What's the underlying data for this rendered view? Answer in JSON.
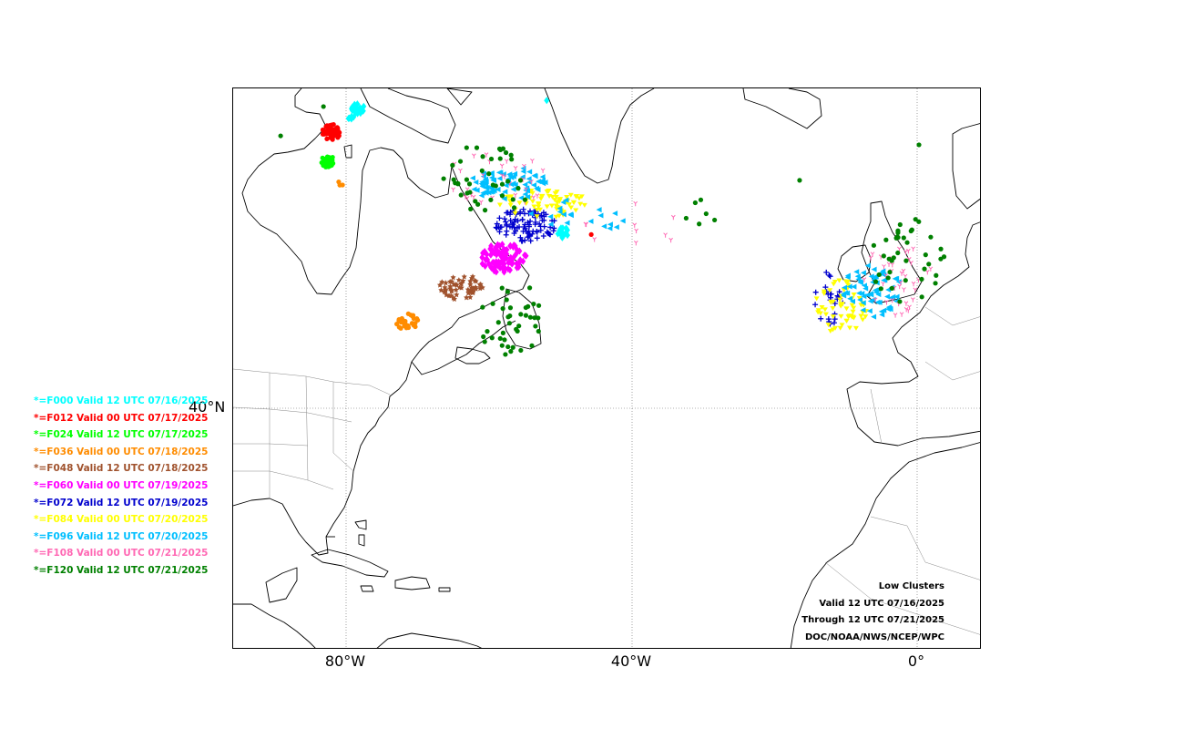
{
  "map": {
    "lon_range": [
      -98,
      11.5
    ],
    "lat_range": [
      22,
      84
    ],
    "projection": "polar-stereographic",
    "gridlines": {
      "lon_labels": [
        {
          "lon": -80,
          "text": "80°W"
        },
        {
          "lon": -40,
          "text": "40°W"
        },
        {
          "lon": 0,
          "text": "0°"
        }
      ],
      "lat_labels": [
        {
          "lat": 40,
          "text": "40°N"
        }
      ]
    }
  },
  "legend": [
    {
      "label": "*=F000 Valid 12 UTC 07/16/2025",
      "color": "#00ffff"
    },
    {
      "label": "*=F012 Valid 00 UTC 07/17/2025",
      "color": "#ff0000"
    },
    {
      "label": "*=F024 Valid 12 UTC 07/17/2025",
      "color": "#00ff00"
    },
    {
      "label": "*=F036 Valid 00 UTC 07/18/2025",
      "color": "#ff8c00"
    },
    {
      "label": "*=F048 Valid 12 UTC 07/18/2025",
      "color": "#a0522d"
    },
    {
      "label": "*=F060 Valid 00 UTC 07/19/2025",
      "color": "#ff00ff"
    },
    {
      "label": "*=F072 Valid 12 UTC 07/19/2025",
      "color": "#0000cd"
    },
    {
      "label": "*=F084 Valid 00 UTC 07/20/2025",
      "color": "#ffff00"
    },
    {
      "label": "*=F096 Valid 12 UTC 07/20/2025",
      "color": "#00bfff"
    },
    {
      "label": "*=F108 Valid 00 UTC 07/21/2025",
      "color": "#ff69b4"
    },
    {
      "label": "*=F120 Valid 12 UTC 07/21/2025",
      "color": "#008000"
    }
  ],
  "info": {
    "title": "Low Clusters",
    "valid": "Valid 12 UTC 07/16/2025",
    "through": "Through 12 UTC 07/21/2025",
    "credit": "DOC/NOAA/NWS/NCEP/WPC"
  }
}
